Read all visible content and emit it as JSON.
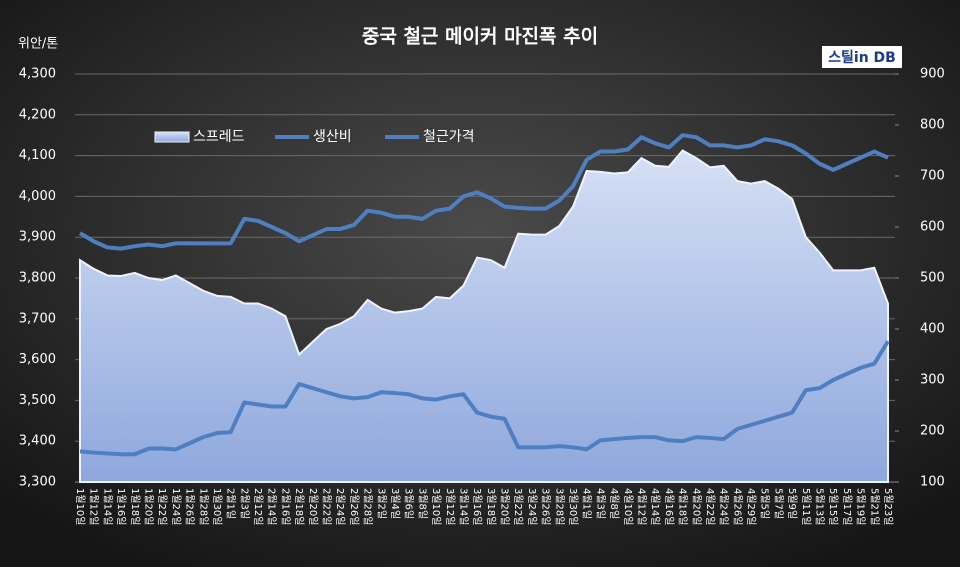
{
  "chart_data": {
    "type": "line",
    "title": "중국 철근 메이커 마진폭 추이",
    "y_label": "위안/톤",
    "logo": "스틸in DB",
    "categories": [
      "1월10일",
      "1월12일",
      "1월14일",
      "1월16일",
      "1월18일",
      "1월20일",
      "1월22일",
      "1월24일",
      "1월26일",
      "1월28일",
      "1월30일",
      "2월1일",
      "2월3일",
      "2월12일",
      "2월14일",
      "2월16일",
      "2월18일",
      "2월20일",
      "2월22일",
      "2월24일",
      "2월26일",
      "2월28일",
      "3월2일",
      "3월4일",
      "3월6일",
      "3월8일",
      "3월10일",
      "3월12일",
      "3월14일",
      "3월16일",
      "3월18일",
      "3월20일",
      "3월22일",
      "3월24일",
      "3월26일",
      "3월28일",
      "3월30일",
      "4월1일",
      "4월3일",
      "4월8일",
      "4월10일",
      "4월12일",
      "4월14일",
      "4월16일",
      "4월18일",
      "4월20일",
      "4월22일",
      "4월24일",
      "4월26일",
      "4월29일",
      "5월5일",
      "5월7일",
      "5월9일",
      "5월11일",
      "5월13일",
      "5월15일",
      "5월17일",
      "5월19일",
      "5월21일",
      "5월23일"
    ],
    "series": [
      {
        "name": "스프레드",
        "type": "area",
        "axis": "y2",
        "color": "#a9bde8",
        "values": [
          535,
          518,
          505,
          504,
          510,
          500,
          496,
          505,
          490,
          475,
          465,
          463,
          450,
          450,
          440,
          425,
          350,
          375,
          400,
          410,
          425,
          457,
          440,
          432,
          435,
          440,
          463,
          460,
          485,
          540,
          535,
          520,
          587,
          585,
          585,
          602,
          640,
          710,
          708,
          705,
          707,
          735,
          720,
          718,
          750,
          735,
          717,
          720,
          690,
          685,
          690,
          675,
          655,
          580,
          550,
          515,
          515,
          515,
          520,
          450
        ]
      },
      {
        "name": "생산비",
        "type": "line",
        "axis": "y",
        "color": "#4f7fc0",
        "values": [
          3375,
          3372,
          3370,
          3368,
          3368,
          3382,
          3382,
          3380,
          3395,
          3410,
          3420,
          3422,
          3495,
          3490,
          3485,
          3485,
          3540,
          3530,
          3520,
          3510,
          3505,
          3508,
          3520,
          3518,
          3515,
          3505,
          3502,
          3510,
          3515,
          3470,
          3460,
          3455,
          3385,
          3385,
          3385,
          3388,
          3385,
          3380,
          3402,
          3405,
          3408,
          3410,
          3410,
          3402,
          3400,
          3410,
          3408,
          3405,
          3430,
          3440,
          3450,
          3460,
          3470,
          3525,
          3530,
          3550,
          3565,
          3580,
          3590,
          3645
        ]
      },
      {
        "name": "철근가격",
        "type": "line",
        "axis": "y",
        "color": "#4f7fc0",
        "values": [
          3910,
          3890,
          3875,
          3872,
          3878,
          3882,
          3878,
          3885,
          3885,
          3885,
          3885,
          3885,
          3945,
          3940,
          3925,
          3910,
          3890,
          3905,
          3920,
          3920,
          3930,
          3965,
          3960,
          3950,
          3950,
          3945,
          3965,
          3970,
          4000,
          4010,
          3995,
          3975,
          3972,
          3970,
          3970,
          3990,
          4025,
          4090,
          4110,
          4110,
          4115,
          4145,
          4130,
          4120,
          4150,
          4145,
          4125,
          4125,
          4120,
          4125,
          4140,
          4135,
          4125,
          4105,
          4080,
          4065,
          4080,
          4095,
          4110,
          4095
        ]
      }
    ],
    "ylim": [
      3300,
      4300
    ],
    "yticks": [
      {
        "value": 3300,
        "label": "3,300"
      },
      {
        "value": 3400,
        "label": "3,400"
      },
      {
        "value": 3500,
        "label": "3,500"
      },
      {
        "value": 3600,
        "label": "3,600"
      },
      {
        "value": 3700,
        "label": "3,700"
      },
      {
        "value": 3800,
        "label": "3,800"
      },
      {
        "value": 3900,
        "label": "3,900"
      },
      {
        "value": 4000,
        "label": "4,000"
      },
      {
        "value": 4100,
        "label": "4,100"
      },
      {
        "value": 4200,
        "label": "4,200"
      },
      {
        "value": 4300,
        "label": "4,300"
      }
    ],
    "y2lim": [
      100,
      900
    ],
    "y2ticks": [
      100,
      200,
      300,
      400,
      500,
      600,
      700,
      800,
      900
    ],
    "grid": true
  }
}
